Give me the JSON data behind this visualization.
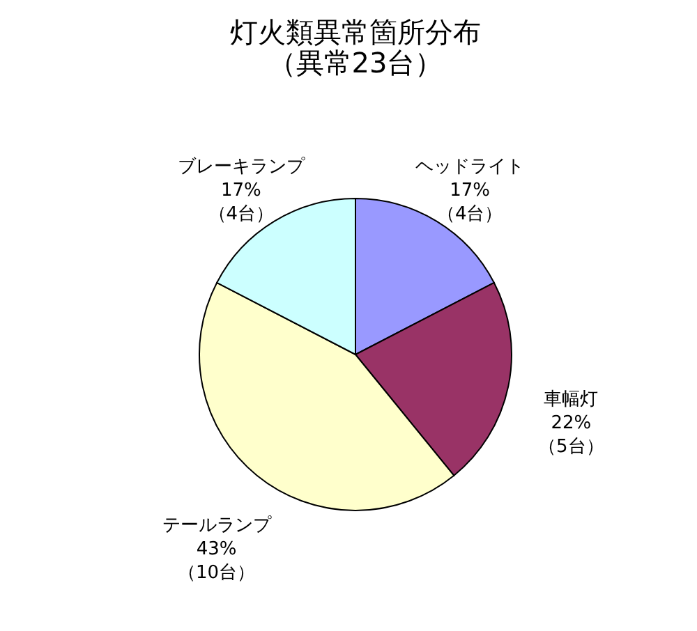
{
  "chart_data": {
    "type": "pie",
    "title": "灯火類異常箇所分布",
    "subtitle": "（異常23台）",
    "categories": [
      "ヘッドライト",
      "車幅灯",
      "テールランプ",
      "ブレーキランプ"
    ],
    "values": [
      4,
      5,
      10,
      4
    ],
    "value_labels": [
      "17%\n（4台）",
      "22%\n（5台）",
      "43%\n（10台）",
      "17%\n（4台）"
    ],
    "colors": [
      "#9999ff",
      "#993366",
      "#ffffcc",
      "#ccffff"
    ]
  }
}
